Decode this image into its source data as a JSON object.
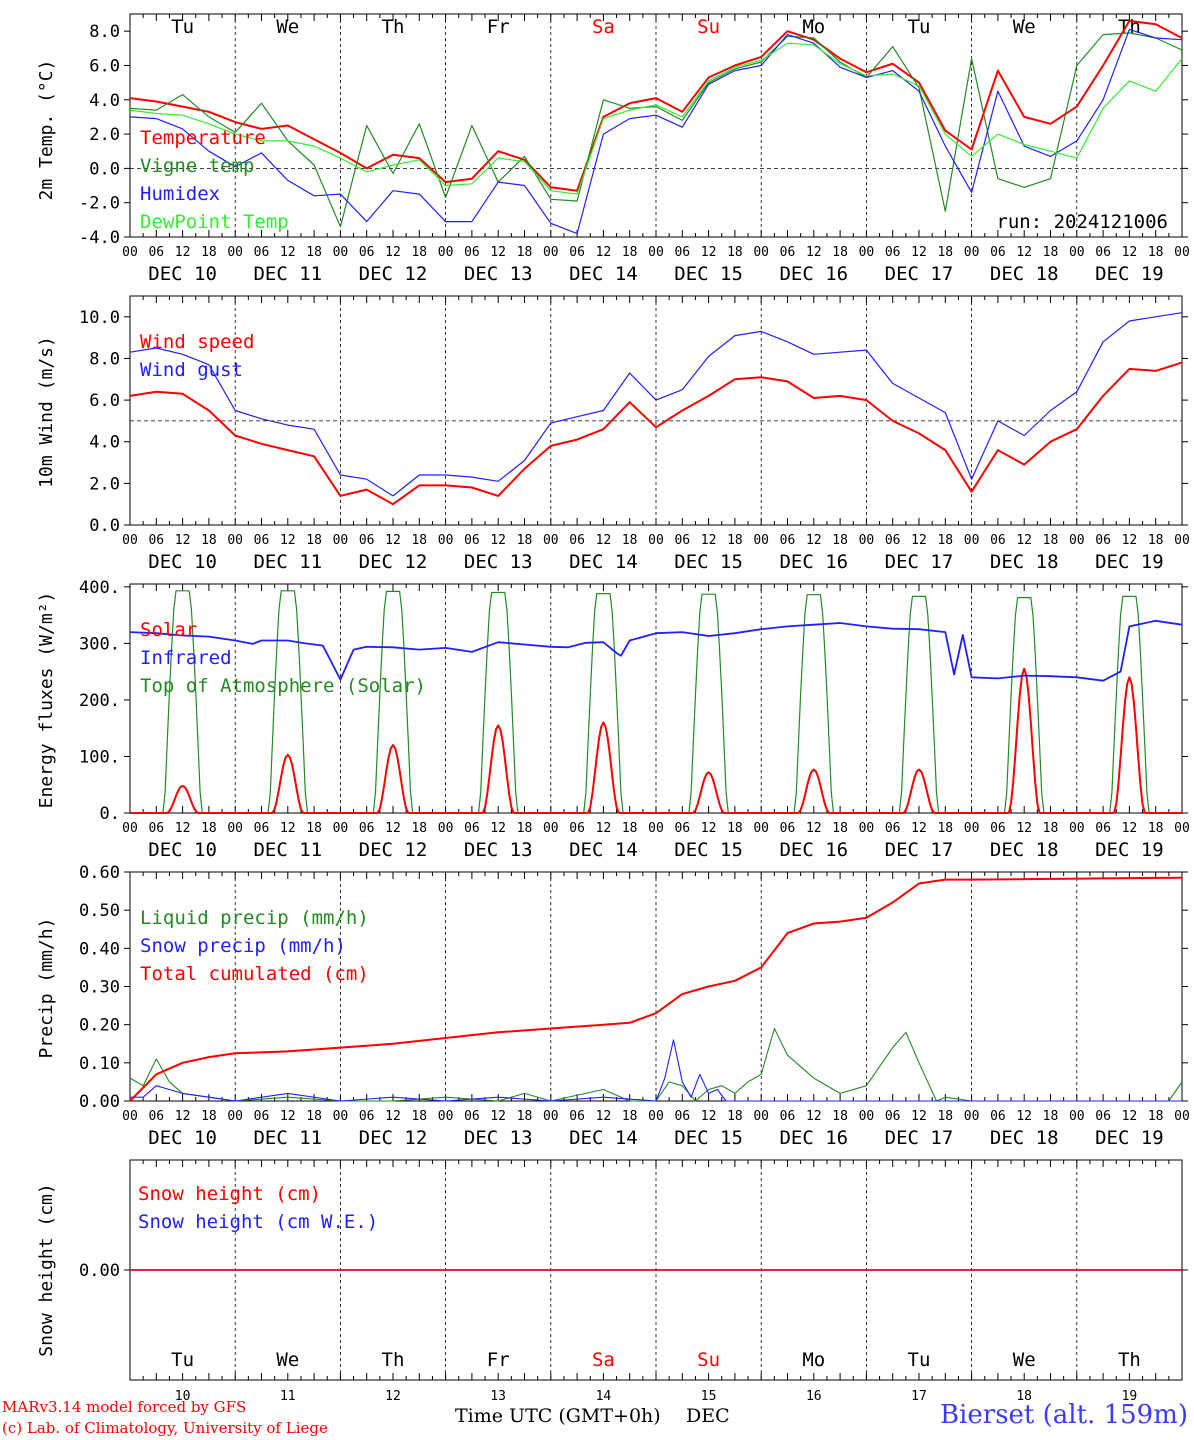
{
  "days": [
    "Tu",
    "We",
    "Th",
    "Fr",
    "Sa",
    "Su",
    "Mo",
    "Tu",
    "We",
    "Th"
  ],
  "day_colors": [
    "#000000",
    "#000000",
    "#000000",
    "#000000",
    "#ff0000",
    "#ff0000",
    "#000000",
    "#000000",
    "#000000",
    "#000000"
  ],
  "dates": [
    "DEC 10",
    "DEC 11",
    "DEC 12",
    "DEC 13",
    "DEC 14",
    "DEC 15",
    "DEC 16",
    "DEC 17",
    "DEC 18",
    "DEC 19"
  ],
  "hour_ticks": [
    "00",
    "06",
    "12",
    "18"
  ],
  "final_hour_tick": "00",
  "day_numbers": [
    "10",
    "11",
    "12",
    "13",
    "14",
    "15",
    "16",
    "17",
    "18",
    "19"
  ],
  "footer": {
    "credit_line1": "MARv3.14 model forced by GFS",
    "credit_line2": "(c) Lab. of Climatology, University of Liege",
    "time_axis_label": "Time UTC (GMT+0h)",
    "month_label": "DEC",
    "station": "Bierset (alt. 159m)"
  },
  "chart_data": [
    {
      "type": "line",
      "ylabel": "2m Temp. (°C)",
      "ylim": [
        -4,
        9
      ],
      "yticks": [
        "-4.0",
        "-2.0",
        "0.0",
        "2.0",
        "4.0",
        "6.0",
        "8.0"
      ],
      "ytick_values": [
        -4,
        -2,
        0,
        2,
        4,
        6,
        8
      ],
      "ref_line": 0,
      "annotation": "run: 2024121006",
      "x_hours": [
        0,
        6,
        12,
        18,
        24,
        30,
        36,
        42,
        48,
        54,
        60,
        66,
        72,
        78,
        84,
        90,
        96,
        102,
        108,
        114,
        120,
        126,
        132,
        138,
        144,
        150,
        156,
        162,
        168,
        174,
        180,
        186,
        192,
        198,
        204,
        210,
        216,
        222,
        228,
        234,
        240
      ],
      "series": [
        {
          "name": "Temperature",
          "color": "#ff0000",
          "values": [
            4.1,
            3.9,
            3.6,
            3.3,
            2.7,
            2.3,
            2.5,
            1.7,
            0.9,
            0.0,
            0.8,
            0.6,
            -0.8,
            -0.6,
            1.0,
            0.5,
            -1.1,
            -1.3,
            3.0,
            3.8,
            4.1,
            3.3,
            5.3,
            6.0,
            6.5,
            8.0,
            7.5,
            6.4,
            5.6,
            6.1,
            5.0,
            2.2,
            1.1,
            5.7,
            3.0,
            2.6,
            3.6,
            6.0,
            8.6,
            8.4,
            7.6
          ]
        },
        {
          "name": "Vigne temp",
          "color": "#228b22",
          "values": [
            3.5,
            3.4,
            4.3,
            3.0,
            2.1,
            3.8,
            1.6,
            0.2,
            -3.4,
            2.5,
            -0.3,
            2.6,
            -1.7,
            2.5,
            -0.8,
            0.7,
            -1.8,
            -1.9,
            4.0,
            3.5,
            3.6,
            2.8,
            5.0,
            5.8,
            6.2,
            7.7,
            7.6,
            6.2,
            5.3,
            7.1,
            4.7,
            -2.5,
            6.4,
            -0.6,
            -1.1,
            -0.6,
            6.0,
            7.8,
            7.9,
            7.6,
            6.9
          ]
        },
        {
          "name": "Humidex",
          "color": "#2020ff",
          "values": [
            3.0,
            2.9,
            2.3,
            1.0,
            0.1,
            0.9,
            -0.7,
            -1.6,
            -1.5,
            -3.1,
            -1.3,
            -1.5,
            -3.1,
            -3.1,
            -0.8,
            -1.0,
            -3.2,
            -3.8,
            2.0,
            2.9,
            3.1,
            2.4,
            4.9,
            5.7,
            6.0,
            7.8,
            7.3,
            5.9,
            5.3,
            5.7,
            4.5,
            1.3,
            -1.4,
            4.5,
            1.3,
            0.7,
            1.6,
            4.0,
            8.1,
            7.6,
            7.5
          ]
        },
        {
          "name": "DewPoint Temp",
          "color": "#33ee33",
          "values": [
            3.4,
            3.2,
            3.1,
            2.6,
            2.0,
            1.6,
            1.6,
            1.3,
            0.6,
            -0.2,
            0.2,
            0.5,
            -1.0,
            -0.9,
            0.6,
            0.4,
            -1.3,
            -1.5,
            2.9,
            3.4,
            3.7,
            3.0,
            5.1,
            5.9,
            6.3,
            7.3,
            7.2,
            6.1,
            5.4,
            5.5,
            4.8,
            2.0,
            0.7,
            2.0,
            1.4,
            1.0,
            0.6,
            3.5,
            5.1,
            4.5,
            6.4
          ]
        }
      ]
    },
    {
      "type": "line",
      "ylabel": "10m Wind (m/s)",
      "ylim": [
        0,
        11
      ],
      "yticks": [
        "0.0",
        "2.0",
        "4.0",
        "6.0",
        "8.0",
        "10.0"
      ],
      "ytick_values": [
        0,
        2,
        4,
        6,
        8,
        10
      ],
      "ref_line": 5,
      "x_hours": [
        0,
        6,
        12,
        18,
        24,
        30,
        36,
        42,
        48,
        54,
        60,
        66,
        72,
        78,
        84,
        90,
        96,
        102,
        108,
        114,
        120,
        126,
        132,
        138,
        144,
        150,
        156,
        162,
        168,
        174,
        180,
        186,
        192,
        198,
        204,
        210,
        216,
        222,
        228,
        234,
        240
      ],
      "series": [
        {
          "name": "Wind speed",
          "color": "#ff0000",
          "values": [
            6.2,
            6.4,
            6.3,
            5.5,
            4.3,
            3.9,
            3.6,
            3.3,
            1.4,
            1.7,
            1.0,
            1.9,
            1.9,
            1.8,
            1.4,
            2.7,
            3.8,
            4.1,
            4.6,
            5.9,
            4.7,
            5.5,
            6.2,
            7.0,
            7.1,
            6.9,
            6.1,
            6.2,
            6.0,
            5.0,
            4.4,
            3.6,
            1.6,
            3.6,
            2.9,
            4.0,
            4.6,
            6.2,
            7.5,
            7.4,
            7.8
          ]
        },
        {
          "name": "Wind gust",
          "color": "#2020ff",
          "values": [
            8.3,
            8.5,
            8.2,
            7.7,
            5.5,
            5.1,
            4.8,
            4.6,
            2.4,
            2.2,
            1.4,
            2.4,
            2.4,
            2.3,
            2.1,
            3.1,
            4.9,
            5.2,
            5.5,
            7.3,
            6.0,
            6.5,
            8.1,
            9.1,
            9.3,
            8.8,
            8.2,
            8.3,
            8.4,
            6.8,
            6.1,
            5.4,
            2.2,
            5.0,
            4.3,
            5.5,
            6.4,
            8.8,
            9.8,
            10.0,
            10.2
          ]
        }
      ]
    },
    {
      "type": "line",
      "ylabel": "Energy fluxes (W/m²)",
      "ylim": [
        0,
        405
      ],
      "yticks": [
        "0.",
        "100.",
        "200.",
        "300.",
        "400."
      ],
      "ytick_values": [
        0,
        100,
        200,
        300,
        400
      ],
      "series": [
        {
          "name": "Solar",
          "color": "#ff0000",
          "peaks": [
            48,
            103,
            120,
            155,
            160,
            72,
            77,
            77,
            255,
            240
          ]
        },
        {
          "name": "Infrared",
          "color": "#2020ff",
          "x_hours": [
            0,
            6,
            12,
            18,
            24,
            28,
            30,
            36,
            40,
            44,
            48,
            51,
            54,
            60,
            66,
            72,
            78,
            84,
            90,
            96,
            100,
            104,
            108,
            111,
            112,
            114,
            120,
            126,
            132,
            138,
            144,
            150,
            156,
            162,
            168,
            174,
            180,
            186,
            188,
            190,
            192,
            198,
            204,
            210,
            216,
            222,
            226,
            228,
            234,
            240
          ],
          "values": [
            320,
            318,
            314,
            312,
            305,
            299,
            305,
            305,
            300,
            296,
            236,
            289,
            294,
            293,
            289,
            292,
            285,
            302,
            298,
            294,
            293,
            301,
            302,
            283,
            278,
            305,
            318,
            320,
            313,
            318,
            325,
            330,
            333,
            336,
            330,
            326,
            325,
            320,
            245,
            315,
            240,
            238,
            243,
            242,
            240,
            234,
            250,
            330,
            340,
            333
          ]
        },
        {
          "name": "Top of Atmosphere (Solar)",
          "color": "#228b22",
          "peaks": [
            393,
            393,
            392,
            390,
            388,
            387,
            386,
            383,
            381,
            383
          ]
        }
      ]
    },
    {
      "type": "line",
      "ylabel": "Precip (mm/h)",
      "ylim": [
        0,
        0.6
      ],
      "yticks": [
        "0.00",
        "0.10",
        "0.20",
        "0.30",
        "0.40",
        "0.50",
        "0.60"
      ],
      "ytick_values": [
        0,
        0.1,
        0.2,
        0.3,
        0.4,
        0.5,
        0.6
      ],
      "series": [
        {
          "name": "Liquid precip (mm/h)",
          "color": "#228b22",
          "x_hours": [
            0,
            3,
            6,
            9,
            12,
            18,
            24,
            36,
            48,
            60,
            72,
            84,
            90,
            96,
            108,
            114,
            120,
            123,
            126,
            129,
            132,
            135,
            138,
            141,
            144,
            147,
            150,
            156,
            162,
            168,
            174,
            177,
            180,
            184,
            186,
            192,
            198,
            204,
            216,
            228,
            237,
            240
          ],
          "values": [
            0.06,
            0.04,
            0.11,
            0.05,
            0.02,
            0.01,
            0.0,
            0.01,
            0.0,
            0.0,
            0.01,
            0.0,
            0.02,
            0.0,
            0.03,
            0.0,
            0.0,
            0.05,
            0.04,
            0.0,
            0.03,
            0.04,
            0.02,
            0.05,
            0.07,
            0.19,
            0.12,
            0.06,
            0.02,
            0.04,
            0.14,
            0.18,
            0.1,
            0.0,
            0.01,
            0.0,
            0.0,
            0.0,
            0.0,
            0.0,
            0.0,
            0.05
          ]
        },
        {
          "name": "Snow precip (mm/h)",
          "color": "#2020ff",
          "x_hours": [
            0,
            3,
            6,
            9,
            12,
            18,
            24,
            36,
            48,
            60,
            72,
            84,
            96,
            108,
            120,
            122,
            124,
            126,
            128,
            130,
            132,
            134,
            136,
            138,
            144,
            156,
            168,
            180,
            192,
            204,
            216,
            228,
            240
          ],
          "values": [
            0.01,
            0.01,
            0.04,
            0.03,
            0.02,
            0.01,
            0.0,
            0.02,
            0.0,
            0.01,
            0.0,
            0.01,
            0.0,
            0.01,
            0.0,
            0.06,
            0.16,
            0.05,
            0.01,
            0.07,
            0.02,
            0.03,
            0.0,
            0.0,
            0.0,
            0.0,
            0.0,
            0.0,
            0.0,
            0.0,
            0.0,
            0.0,
            0.0
          ]
        },
        {
          "name": "Total cumulated (cm)",
          "color": "#ff0000",
          "x_hours": [
            0,
            6,
            12,
            18,
            24,
            36,
            48,
            60,
            72,
            84,
            96,
            108,
            114,
            120,
            126,
            132,
            138,
            144,
            150,
            156,
            162,
            168,
            174,
            180,
            186,
            192,
            240
          ],
          "values": [
            0.0,
            0.07,
            0.1,
            0.115,
            0.125,
            0.13,
            0.14,
            0.15,
            0.165,
            0.18,
            0.19,
            0.2,
            0.205,
            0.23,
            0.28,
            0.3,
            0.315,
            0.35,
            0.44,
            0.465,
            0.47,
            0.48,
            0.52,
            0.57,
            0.58,
            0.58,
            0.585
          ]
        }
      ]
    },
    {
      "type": "line",
      "ylabel": "Snow height (cm)",
      "yticks": [
        "0.00"
      ],
      "ytick_values": [
        0
      ],
      "series": [
        {
          "name": "Snow height (cm)",
          "color": "#ff0000",
          "constant": 0
        },
        {
          "name": "Snow height (cm W.E.)",
          "color": "#2020ff",
          "constant": 0
        }
      ]
    }
  ]
}
